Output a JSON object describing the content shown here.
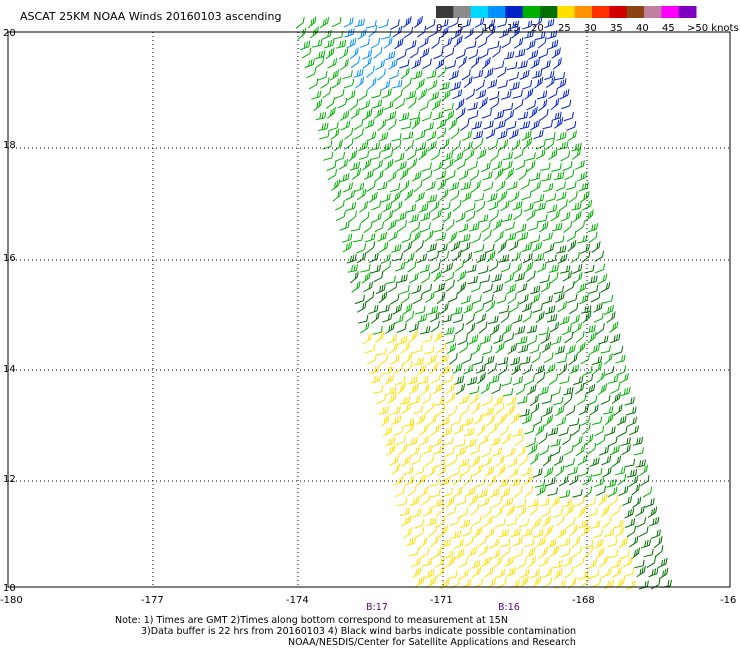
{
  "title": "ASCAT 25KM NOAA Winds 20160103 ascending",
  "legend": {
    "labels": [
      "0",
      "5",
      "10",
      "15",
      "20",
      "25",
      "30",
      "35",
      "40",
      "45",
      ">50 knots"
    ],
    "colors": [
      "#3a3a3a",
      "#8a8a8a",
      "#00d8ff",
      "#0090ff",
      "#0020c8",
      "#00b000",
      "#007000",
      "#ffe000",
      "#ff9000",
      "#ff3000",
      "#d00000",
      "#8b4513",
      "#c080a0",
      "#ff00ff",
      "#8000c0"
    ]
  },
  "axes": {
    "lon_labels": [
      "-180",
      "-177",
      "-174",
      "-171",
      "-168",
      "-16"
    ],
    "lat_labels": [
      "20",
      "18",
      "16",
      "14",
      "12",
      "10"
    ],
    "gridlines": true
  },
  "pass_times": [
    "B:17",
    "B:16"
  ],
  "notes": {
    "line1": "Note: 1) Times are GMT 2)Times along bottom correspond to measurement at 15N",
    "line2": "3)Data buffer is 22 hrs from 20160103 4) Black wind barbs indicate possible contamination",
    "line3": "NOAA/NESDIS/Center for Satellite Applications and Research"
  }
}
